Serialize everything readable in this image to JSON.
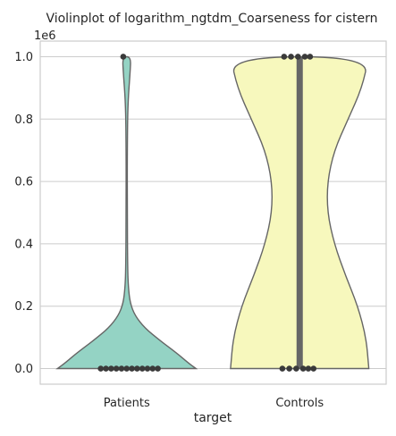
{
  "chart_data": {
    "type": "violin",
    "title": "Violinplot of logarithm_ngtdm_Coarseness for cistern",
    "xlabel": "target",
    "ylabel": "",
    "y_offset_label": "1e6",
    "ylim": [
      -50000,
      1050000
    ],
    "yticks": [
      0,
      200000,
      400000,
      600000,
      800000,
      1000000
    ],
    "ytick_labels": [
      "0.0",
      "0.2",
      "0.4",
      "0.6",
      "0.8",
      "1.0"
    ],
    "grid": true,
    "categories": [
      "Patients",
      "Controls"
    ],
    "series": [
      {
        "category": "Patients",
        "fill": "#94d3c4",
        "box_color": "#666666",
        "quartiles": [
          0,
          0,
          0
        ],
        "whisker": [
          0,
          0
        ],
        "density_profile": [
          {
            "y": 0,
            "half_width": 0.5
          },
          {
            "y": 20000,
            "half_width": 0.44
          },
          {
            "y": 50000,
            "half_width": 0.36
          },
          {
            "y": 90000,
            "half_width": 0.24
          },
          {
            "y": 130000,
            "half_width": 0.13
          },
          {
            "y": 170000,
            "half_width": 0.06
          },
          {
            "y": 210000,
            "half_width": 0.025
          },
          {
            "y": 260000,
            "half_width": 0.012
          },
          {
            "y": 320000,
            "half_width": 0.007
          },
          {
            "y": 500000,
            "half_width": 0.004
          },
          {
            "y": 700000,
            "half_width": 0.004
          },
          {
            "y": 850000,
            "half_width": 0.008
          },
          {
            "y": 950000,
            "half_width": 0.025
          },
          {
            "y": 1000000,
            "half_width": 0.03
          }
        ],
        "points": [
          {
            "y": 0,
            "dx": -0.12
          },
          {
            "y": 0,
            "dx": -0.09
          },
          {
            "y": 0,
            "dx": -0.06
          },
          {
            "y": 0,
            "dx": -0.03
          },
          {
            "y": 0,
            "dx": 0
          },
          {
            "y": 0,
            "dx": 0.03
          },
          {
            "y": 0,
            "dx": 0.06
          },
          {
            "y": 0,
            "dx": 0.09
          },
          {
            "y": 0,
            "dx": 0.12
          },
          {
            "y": 0,
            "dx": 0.15
          },
          {
            "y": 0,
            "dx": -0.15
          },
          {
            "y": 0,
            "dx": 0.18
          },
          {
            "y": 1000000,
            "dx": -0.02
          }
        ]
      },
      {
        "category": "Controls",
        "fill": "#f7f8bd",
        "box_color": "#666666",
        "quartiles": [
          0,
          1000000,
          1000000
        ],
        "whisker": [
          0,
          1000000
        ],
        "density_profile": [
          {
            "y": 0,
            "half_width": 0.5
          },
          {
            "y": 100000,
            "half_width": 0.48
          },
          {
            "y": 200000,
            "half_width": 0.42
          },
          {
            "y": 300000,
            "half_width": 0.33
          },
          {
            "y": 400000,
            "half_width": 0.25
          },
          {
            "y": 500000,
            "half_width": 0.2
          },
          {
            "y": 600000,
            "half_width": 0.2
          },
          {
            "y": 700000,
            "half_width": 0.25
          },
          {
            "y": 800000,
            "half_width": 0.35
          },
          {
            "y": 900000,
            "half_width": 0.45
          },
          {
            "y": 1000000,
            "half_width": 0.5
          }
        ],
        "points": [
          {
            "y": 0,
            "dx": -0.1
          },
          {
            "y": 0,
            "dx": -0.06
          },
          {
            "y": 0,
            "dx": -0.02
          },
          {
            "y": 0,
            "dx": 0.02
          },
          {
            "y": 0,
            "dx": 0.05
          },
          {
            "y": 0,
            "dx": 0.08
          },
          {
            "y": 1000000,
            "dx": -0.09
          },
          {
            "y": 1000000,
            "dx": -0.05
          },
          {
            "y": 1000000,
            "dx": -0.01
          },
          {
            "y": 1000000,
            "dx": 0.03
          },
          {
            "y": 1000000,
            "dx": 0.06
          }
        ]
      }
    ]
  }
}
